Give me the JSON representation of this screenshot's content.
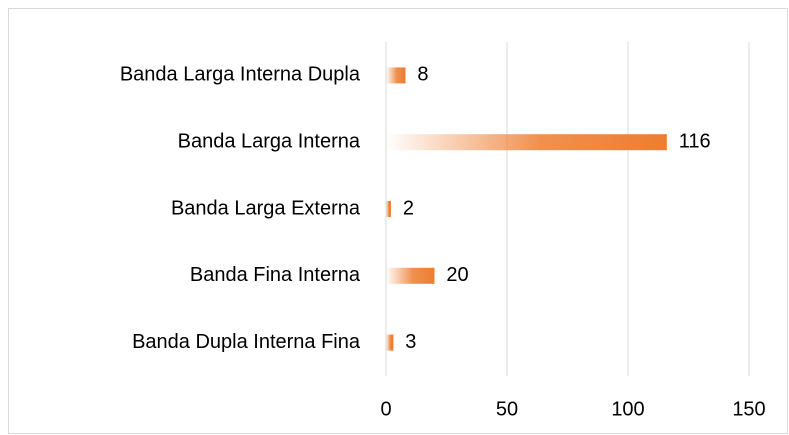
{
  "chart_data": {
    "type": "bar",
    "orientation": "horizontal",
    "categories": [
      "Banda Larga Interna Dupla",
      "Banda Larga Interna",
      "Banda Larga Externa",
      "Banda Fina Interna",
      "Banda Dupla Interna Fina"
    ],
    "values": [
      8,
      116,
      2,
      20,
      3
    ],
    "color": "#ed7d31",
    "xlim": [
      0,
      150
    ],
    "xticks": [
      0,
      50,
      100,
      150
    ],
    "grid": true
  }
}
